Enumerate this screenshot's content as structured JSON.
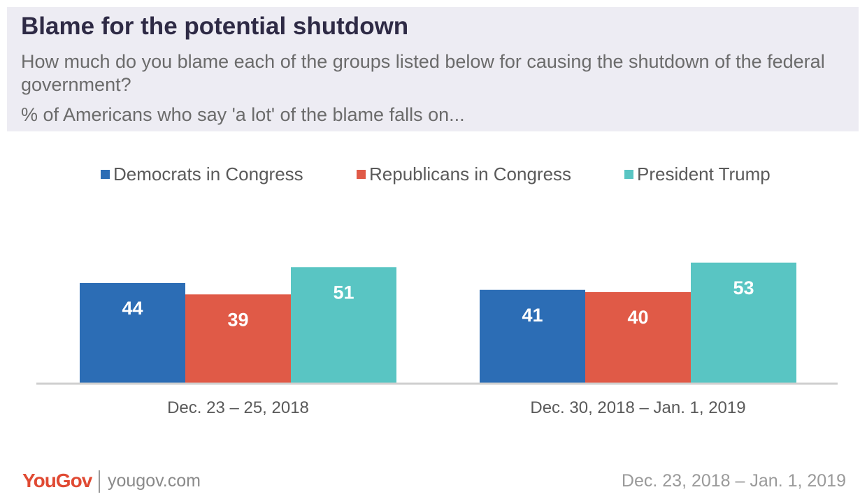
{
  "header": {
    "title": "Blame for the potential shutdown",
    "subtitle": "How much do you blame each of the groups listed below for causing the shutdown of the federal government?",
    "note": "% of Americans who say 'a lot' of the blame falls on..."
  },
  "footer": {
    "logo": "YouGov",
    "site": "yougov.com",
    "date_range": "Dec. 23, 2018 – Jan. 1, 2019"
  },
  "chart_data": {
    "type": "bar",
    "categories": [
      "Dec. 23 – 25, 2018",
      "Dec. 30, 2018 – Jan. 1, 2019"
    ],
    "series": [
      {
        "name": "Democrats in Congress",
        "values": [
          44,
          41
        ],
        "color": "#2c6db5"
      },
      {
        "name": "Republicans in Congress",
        "values": [
          39,
          40
        ],
        "color": "#e05a47"
      },
      {
        "name": "President Trump",
        "values": [
          51,
          53
        ],
        "color": "#59c5c3"
      }
    ],
    "ylim": [
      0,
      100
    ],
    "legend_position": "top",
    "grid": false,
    "data_labels": true
  }
}
